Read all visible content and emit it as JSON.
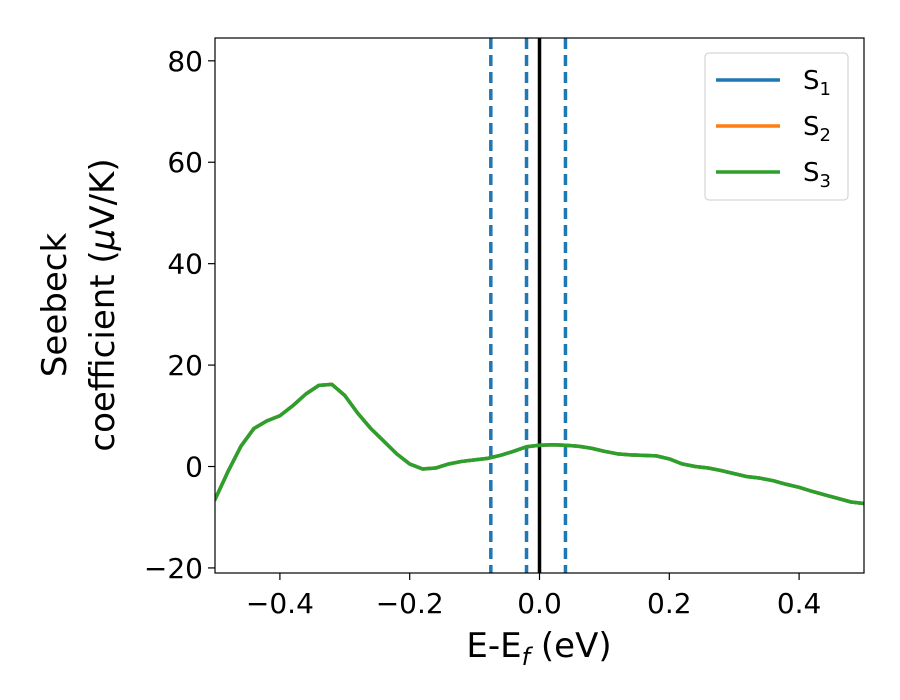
{
  "chart_data": {
    "type": "line",
    "xlabel": "E-E",
    "xlabel_sub": "f",
    "xlabel_unit": " (eV)",
    "ylabel_line1": "Seebeck",
    "ylabel_line2": "coefficient  (",
    "ylabel_mu": "μ",
    "ylabel_unit": "V/K)",
    "xlim": [
      -0.5,
      0.5
    ],
    "ylim": [
      -21,
      84.5
    ],
    "xticks": [
      -0.4,
      -0.2,
      0.0,
      0.2,
      0.4
    ],
    "xtick_labels": [
      "−0.4",
      "−0.2",
      "0.0",
      "0.2",
      "0.4"
    ],
    "yticks": [
      -20,
      0,
      20,
      40,
      60,
      80
    ],
    "ytick_labels": [
      "−20",
      "0",
      "20",
      "40",
      "60",
      "80"
    ],
    "grid": false,
    "legend_position": "top-right",
    "series": [
      {
        "name": "S",
        "sub": "1",
        "color": "#1f77b4",
        "x": [
          -0.5,
          -0.48,
          -0.46,
          -0.44,
          -0.42,
          -0.4,
          -0.38,
          -0.36,
          -0.34,
          -0.32,
          -0.3,
          -0.28,
          -0.26,
          -0.24,
          -0.22,
          -0.2,
          -0.18,
          -0.16,
          -0.14,
          -0.12,
          -0.1,
          -0.08,
          -0.06,
          -0.04,
          -0.02,
          0.0,
          0.02,
          0.04,
          0.06,
          0.08,
          0.1,
          0.12,
          0.14,
          0.16,
          0.18,
          0.2,
          0.22,
          0.24,
          0.26,
          0.28,
          0.3,
          0.32,
          0.34,
          0.36,
          0.38,
          0.4,
          0.42,
          0.44,
          0.46,
          0.48,
          0.5
        ],
        "y": [
          -6.5,
          -1.0,
          4.0,
          7.5,
          9.0,
          10.0,
          12.0,
          14.3,
          16.0,
          16.2,
          14.0,
          10.5,
          7.5,
          5.0,
          2.5,
          0.5,
          -0.5,
          -0.3,
          0.5,
          1.0,
          1.3,
          1.6,
          2.2,
          3.0,
          3.9,
          4.2,
          4.3,
          4.2,
          4.0,
          3.6,
          3.0,
          2.5,
          2.3,
          2.2,
          2.1,
          1.5,
          0.5,
          0.0,
          -0.3,
          -0.8,
          -1.4,
          -2.0,
          -2.3,
          -2.8,
          -3.5,
          -4.1,
          -4.9,
          -5.6,
          -6.3,
          -7.0,
          -7.3
        ]
      },
      {
        "name": "S",
        "sub": "2",
        "color": "#ff7f0e",
        "x": [
          -0.5,
          -0.48,
          -0.46,
          -0.44,
          -0.42,
          -0.4,
          -0.38,
          -0.36,
          -0.34,
          -0.32,
          -0.3,
          -0.28,
          -0.26,
          -0.24,
          -0.22,
          -0.2,
          -0.18,
          -0.16,
          -0.14,
          -0.12,
          -0.1,
          -0.08,
          -0.06,
          -0.04,
          -0.02,
          0.0,
          0.02,
          0.04,
          0.06,
          0.08,
          0.1,
          0.12,
          0.14,
          0.16,
          0.18,
          0.2,
          0.22,
          0.24,
          0.26,
          0.28,
          0.3,
          0.32,
          0.34,
          0.36,
          0.38,
          0.4,
          0.42,
          0.44,
          0.46,
          0.48,
          0.5
        ],
        "y": [
          -6.5,
          -1.0,
          4.0,
          7.5,
          9.0,
          10.0,
          12.0,
          14.3,
          16.0,
          16.2,
          14.0,
          10.5,
          7.5,
          5.0,
          2.5,
          0.5,
          -0.5,
          -0.3,
          0.5,
          1.0,
          1.3,
          1.6,
          2.2,
          3.0,
          3.9,
          4.2,
          4.3,
          4.2,
          4.0,
          3.6,
          3.0,
          2.5,
          2.3,
          2.2,
          2.1,
          1.5,
          0.5,
          0.0,
          -0.3,
          -0.8,
          -1.4,
          -2.0,
          -2.3,
          -2.8,
          -3.5,
          -4.1,
          -4.9,
          -5.6,
          -6.3,
          -7.0,
          -7.3
        ]
      },
      {
        "name": "S",
        "sub": "3",
        "color": "#2ca02c",
        "x": [
          -0.5,
          -0.48,
          -0.46,
          -0.44,
          -0.42,
          -0.4,
          -0.38,
          -0.36,
          -0.34,
          -0.32,
          -0.3,
          -0.28,
          -0.26,
          -0.24,
          -0.22,
          -0.2,
          -0.18,
          -0.16,
          -0.14,
          -0.12,
          -0.1,
          -0.08,
          -0.06,
          -0.04,
          -0.02,
          0.0,
          0.02,
          0.04,
          0.06,
          0.08,
          0.1,
          0.12,
          0.14,
          0.16,
          0.18,
          0.2,
          0.22,
          0.24,
          0.26,
          0.28,
          0.3,
          0.32,
          0.34,
          0.36,
          0.38,
          0.4,
          0.42,
          0.44,
          0.46,
          0.48,
          0.5
        ],
        "y": [
          -6.5,
          -1.0,
          4.0,
          7.5,
          9.0,
          10.0,
          12.0,
          14.3,
          16.0,
          16.2,
          14.0,
          10.5,
          7.5,
          5.0,
          2.5,
          0.5,
          -0.5,
          -0.3,
          0.5,
          1.0,
          1.3,
          1.6,
          2.2,
          3.0,
          3.9,
          4.2,
          4.3,
          4.2,
          4.0,
          3.6,
          3.0,
          2.5,
          2.3,
          2.2,
          2.1,
          1.5,
          0.5,
          0.0,
          -0.3,
          -0.8,
          -1.4,
          -2.0,
          -2.3,
          -2.8,
          -3.5,
          -4.1,
          -4.9,
          -5.6,
          -6.3,
          -7.0,
          -7.3
        ]
      }
    ],
    "reference_lines": [
      {
        "x": -0.075,
        "style": "dashed",
        "color": "#1f77b4"
      },
      {
        "x": -0.02,
        "style": "dashed",
        "color": "#1f77b4"
      },
      {
        "x": 0.0,
        "style": "solid",
        "color": "#000000"
      },
      {
        "x": 0.04,
        "style": "dashed",
        "color": "#1f77b4"
      }
    ]
  }
}
